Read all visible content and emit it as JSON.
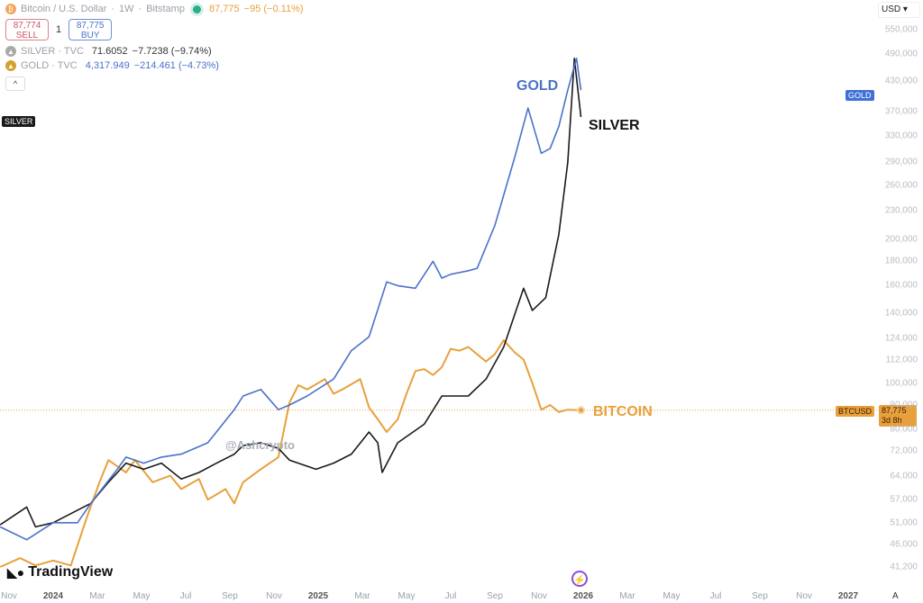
{
  "header": {
    "symbol": "Bitcoin / U.S. Dollar",
    "interval": "1W",
    "exchange": "Bitstamp",
    "price": "87,775",
    "change": "−95 (−0.11%)",
    "sell_price": "87,774",
    "sell_label": "SELL",
    "spread": "1",
    "buy_price": "87,775",
    "buy_label": "BUY",
    "silver": {
      "name": "SILVER · TVC",
      "price": "71.6052",
      "change": "−7.7238 (−9.74%)"
    },
    "gold": {
      "name": "GOLD · TVC",
      "price": "4,317.949",
      "change": "−214.461 (−4.73%)"
    },
    "collapse": "^"
  },
  "currency": "USD ▾",
  "auto_button": "A",
  "watermark": "@Ashcrypto",
  "logo": "TradingView",
  "colors": {
    "bitcoin": "#e8a03c",
    "gold": "#4a72c8",
    "silver": "#1a1a1a"
  },
  "chart_data": {
    "type": "line",
    "x_unit": "months since Nov 2023",
    "y_scale": "log",
    "ylim": [
      41200,
      550000
    ],
    "xlim": [
      -0.4,
      39.5
    ],
    "y_ticks": [
      "550,000",
      "490,000",
      "430,000",
      "370,000",
      "330,000",
      "290,000",
      "260,000",
      "230,000",
      "200,000",
      "180,000",
      "160,000",
      "140,000",
      "124,000",
      "112,000",
      "100,000",
      "90,000",
      "80,000",
      "72,000",
      "64,000",
      "57,000",
      "51,000",
      "46,000",
      "41,200"
    ],
    "y_tick_values": [
      550000,
      490000,
      430000,
      370000,
      330000,
      290000,
      260000,
      230000,
      200000,
      180000,
      160000,
      140000,
      124000,
      112000,
      100000,
      90000,
      80000,
      72000,
      64000,
      57000,
      51000,
      46000,
      41200
    ],
    "x_ticks": [
      {
        "label": "Nov",
        "m": 0
      },
      {
        "label": "2024",
        "m": 2
      },
      {
        "label": "Mar",
        "m": 4
      },
      {
        "label": "May",
        "m": 6
      },
      {
        "label": "Jul",
        "m": 8
      },
      {
        "label": "Sep",
        "m": 10
      },
      {
        "label": "Nov",
        "m": 12
      },
      {
        "label": "2025",
        "m": 14
      },
      {
        "label": "Mar",
        "m": 16
      },
      {
        "label": "May",
        "m": 18
      },
      {
        "label": "Jul",
        "m": 20
      },
      {
        "label": "Sep",
        "m": 22
      },
      {
        "label": "Nov",
        "m": 24
      },
      {
        "label": "2026",
        "m": 26
      },
      {
        "label": "Mar",
        "m": 28
      },
      {
        "label": "May",
        "m": 30
      },
      {
        "label": "Jul",
        "m": 32
      },
      {
        "label": "Sep",
        "m": 34
      },
      {
        "label": "Nov",
        "m": 36
      },
      {
        "label": "2027",
        "m": 38
      }
    ],
    "series": [
      {
        "name": "GOLD",
        "label": "GOLD",
        "tag": "GOLD",
        "points": [
          [
            -0.4,
            50000
          ],
          [
            0.8,
            47000
          ],
          [
            2.0,
            51000
          ],
          [
            3.1,
            51000
          ],
          [
            3.7,
            56000
          ],
          [
            4.9,
            66000
          ],
          [
            5.3,
            70000
          ],
          [
            6.1,
            68000
          ],
          [
            6.9,
            70000
          ],
          [
            7.8,
            71000
          ],
          [
            9.0,
            75000
          ],
          [
            10.2,
            88000
          ],
          [
            10.6,
            94000
          ],
          [
            11.4,
            97000
          ],
          [
            12.2,
            88000
          ],
          [
            12.7,
            90000
          ],
          [
            13.5,
            94000
          ],
          [
            14.7,
            102000
          ],
          [
            15.5,
            117000
          ],
          [
            16.3,
            125000
          ],
          [
            17.1,
            163000
          ],
          [
            17.6,
            160000
          ],
          [
            18.4,
            158000
          ],
          [
            19.2,
            180000
          ],
          [
            19.6,
            166000
          ],
          [
            20.0,
            169000
          ],
          [
            20.8,
            172000
          ],
          [
            21.2,
            174000
          ],
          [
            22.0,
            214000
          ],
          [
            22.9,
            297000
          ],
          [
            23.5,
            377000
          ],
          [
            24.1,
            303000
          ],
          [
            24.5,
            310000
          ],
          [
            24.9,
            345000
          ],
          [
            25.3,
            411000
          ],
          [
            25.7,
            479000
          ],
          [
            25.9,
            411000
          ]
        ]
      },
      {
        "name": "SILVER",
        "label": "SILVER",
        "tag": "SILVER",
        "points": [
          [
            -0.4,
            50500
          ],
          [
            0.8,
            55000
          ],
          [
            1.2,
            50000
          ],
          [
            2.0,
            51000
          ],
          [
            3.7,
            56000
          ],
          [
            4.5,
            62000
          ],
          [
            5.3,
            68000
          ],
          [
            6.1,
            66000
          ],
          [
            6.9,
            68000
          ],
          [
            7.8,
            63000
          ],
          [
            8.6,
            65000
          ],
          [
            9.4,
            68000
          ],
          [
            10.2,
            71000
          ],
          [
            10.6,
            74000
          ],
          [
            11.4,
            75000
          ],
          [
            12.2,
            73000
          ],
          [
            12.7,
            69000
          ],
          [
            13.9,
            66000
          ],
          [
            14.7,
            68000
          ],
          [
            15.5,
            71000
          ],
          [
            16.3,
            79000
          ],
          [
            16.7,
            75000
          ],
          [
            16.9,
            65000
          ],
          [
            17.6,
            75000
          ],
          [
            18.8,
            82000
          ],
          [
            19.6,
            94000
          ],
          [
            20.8,
            94000
          ],
          [
            21.6,
            102000
          ],
          [
            22.4,
            119000
          ],
          [
            23.3,
            158000
          ],
          [
            23.7,
            142000
          ],
          [
            24.3,
            151000
          ],
          [
            24.9,
            205000
          ],
          [
            25.3,
            290000
          ],
          [
            25.6,
            479000
          ],
          [
            25.9,
            361000
          ]
        ]
      },
      {
        "name": "BITCOIN",
        "label": "BITCOIN",
        "tag": "BTCUSD",
        "tag_price": "87,775",
        "tag_time": "3d 8h",
        "points": [
          [
            -0.4,
            41200
          ],
          [
            0.5,
            43000
          ],
          [
            1.2,
            41500
          ],
          [
            2.0,
            42500
          ],
          [
            2.8,
            41500
          ],
          [
            3.5,
            52000
          ],
          [
            4.1,
            62000
          ],
          [
            4.5,
            69000
          ],
          [
            5.3,
            65000
          ],
          [
            5.7,
            69000
          ],
          [
            6.5,
            62000
          ],
          [
            7.3,
            64000
          ],
          [
            7.8,
            60000
          ],
          [
            8.6,
            63000
          ],
          [
            9.0,
            57000
          ],
          [
            9.8,
            60000
          ],
          [
            10.2,
            56000
          ],
          [
            10.6,
            62000
          ],
          [
            11.4,
            66000
          ],
          [
            12.2,
            70000
          ],
          [
            12.7,
            91000
          ],
          [
            13.1,
            99000
          ],
          [
            13.5,
            97000
          ],
          [
            14.3,
            102000
          ],
          [
            14.7,
            95000
          ],
          [
            15.1,
            97000
          ],
          [
            15.9,
            102000
          ],
          [
            16.3,
            89000
          ],
          [
            16.7,
            84000
          ],
          [
            17.1,
            79000
          ],
          [
            17.6,
            84000
          ],
          [
            18.0,
            95000
          ],
          [
            18.4,
            106000
          ],
          [
            18.8,
            107000
          ],
          [
            19.2,
            104000
          ],
          [
            19.6,
            108000
          ],
          [
            20.0,
            118000
          ],
          [
            20.4,
            117000
          ],
          [
            20.8,
            119000
          ],
          [
            21.6,
            111000
          ],
          [
            22.0,
            115000
          ],
          [
            22.4,
            123000
          ],
          [
            22.9,
            116000
          ],
          [
            23.3,
            112000
          ],
          [
            23.7,
            100000
          ],
          [
            24.1,
            88000
          ],
          [
            24.5,
            90000
          ],
          [
            24.9,
            87000
          ],
          [
            25.3,
            88000
          ],
          [
            25.9,
            87775
          ]
        ]
      }
    ],
    "current_price": 87775
  }
}
